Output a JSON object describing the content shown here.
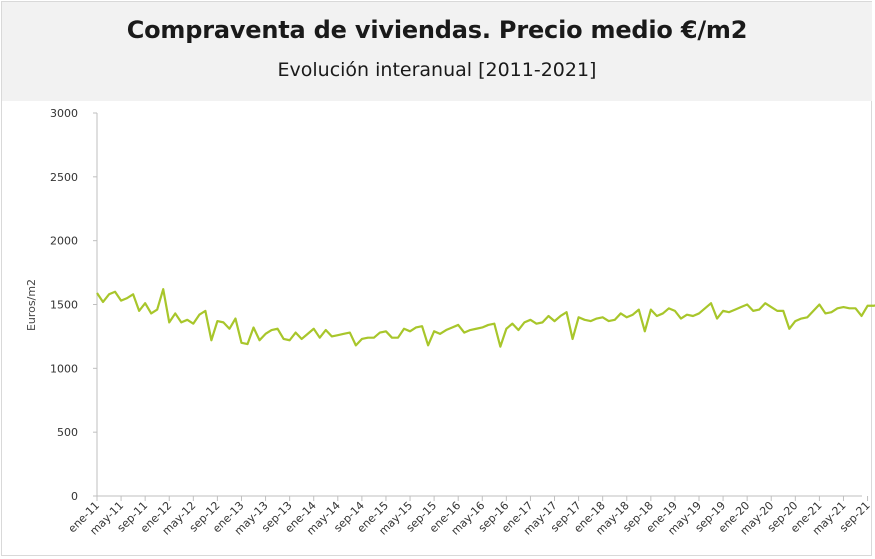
{
  "chart_data": {
    "type": "line",
    "title": "Compraventa de viviendas. Precio medio €/m2",
    "subtitle": "Evolución interanual [2011-2021]",
    "xlabel": "",
    "ylabel": "Euros/m2",
    "ylim": [
      0,
      3000
    ],
    "y_ticks": [
      0,
      500,
      1000,
      1500,
      2000,
      2500,
      3000
    ],
    "x_tick_labels": [
      "ene-11",
      "may-11",
      "sep-11",
      "ene-12",
      "may-12",
      "sep-12",
      "ene-13",
      "may-13",
      "sep-13",
      "ene-14",
      "may-14",
      "sep-14",
      "ene-15",
      "may-15",
      "sep-15",
      "ene-16",
      "may-16",
      "sep-16",
      "ene-17",
      "may-17",
      "sep-17",
      "ene-18",
      "may-18",
      "sep-18",
      "ene-19",
      "may-19",
      "sep-19",
      "ene-20",
      "may-20",
      "sep-20",
      "ene-21",
      "may-21",
      "sep-21"
    ],
    "grid": false,
    "series": [
      {
        "color": "#a8c62b",
        "values": [
          1590,
          1520,
          1580,
          1600,
          1530,
          1550,
          1580,
          1450,
          1510,
          1430,
          1460,
          1620,
          1360,
          1430,
          1360,
          1380,
          1350,
          1420,
          1450,
          1220,
          1370,
          1360,
          1310,
          1390,
          1200,
          1190,
          1320,
          1220,
          1270,
          1300,
          1310,
          1230,
          1220,
          1280,
          1230,
          1270,
          1310,
          1240,
          1300,
          1250,
          1260,
          1270,
          1280,
          1180,
          1230,
          1240,
          1240,
          1280,
          1290,
          1240,
          1240,
          1310,
          1290,
          1320,
          1330,
          1180,
          1290,
          1270,
          1300,
          1320,
          1340,
          1280,
          1300,
          1310,
          1320,
          1340,
          1350,
          1170,
          1310,
          1350,
          1300,
          1360,
          1380,
          1350,
          1360,
          1410,
          1370,
          1410,
          1440,
          1230,
          1400,
          1380,
          1370,
          1390,
          1400,
          1370,
          1380,
          1430,
          1400,
          1420,
          1460,
          1290,
          1460,
          1410,
          1430,
          1470,
          1450,
          1390,
          1420,
          1410,
          1430,
          1470,
          1510,
          1390,
          1450,
          1440,
          1460,
          1480,
          1500,
          1450,
          1460,
          1510,
          1480,
          1450,
          1450,
          1310,
          1370,
          1390,
          1400,
          1450,
          1500,
          1430,
          1440,
          1470,
          1480,
          1470,
          1470,
          1410,
          1490,
          1490,
          1500,
          1510
        ]
      }
    ]
  }
}
